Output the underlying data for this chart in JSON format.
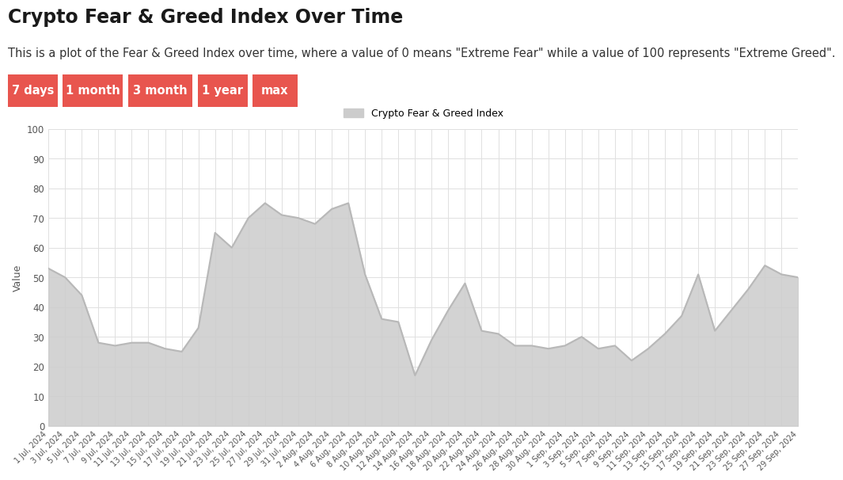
{
  "title": "Crypto Fear & Greed Index Over Time",
  "subtitle": "This is a plot of the Fear & Greed Index over time, where a value of 0 means \"Extreme Fear\" while a value of 100 represents \"Extreme Greed\".",
  "legend_label": "Crypto Fear & Greed Index",
  "ylabel": "Value",
  "button_labels": [
    "7 days",
    "1 month",
    "3 month",
    "1 year",
    "max"
  ],
  "button_color": "#e8554e",
  "line_color": "#b8b8b8",
  "line_fill_color": "#cccccc",
  "background_color": "#ffffff",
  "grid_color": "#e0e0e0",
  "ylim": [
    0,
    100
  ],
  "yticks": [
    0,
    10,
    20,
    30,
    40,
    50,
    60,
    70,
    80,
    90,
    100
  ],
  "dates": [
    "1 Jul, 2024",
    "3 Jul, 2024",
    "5 Jul, 2024",
    "7 Jul, 2024",
    "9 Jul, 2024",
    "11 Jul, 2024",
    "13 Jul, 2024",
    "15 Jul, 2024",
    "17 Jul, 2024",
    "19 Jul, 2024",
    "21 Jul, 2024",
    "23 Jul, 2024",
    "25 Jul, 2024",
    "27 Jul, 2024",
    "29 Jul, 2024",
    "31 Jul, 2024",
    "2 Aug, 2024",
    "4 Aug, 2024",
    "6 Aug, 2024",
    "8 Aug, 2024",
    "10 Aug, 2024",
    "12 Aug, 2024",
    "14 Aug, 2024",
    "16 Aug, 2024",
    "18 Aug, 2024",
    "20 Aug, 2024",
    "22 Aug, 2024",
    "24 Aug, 2024",
    "26 Aug, 2024",
    "28 Aug, 2024",
    "30 Aug, 2024",
    "1 Sep, 2024",
    "3 Sep, 2024",
    "5 Sep, 2024",
    "7 Sep, 2024",
    "9 Sep, 2024",
    "11 Sep, 2024",
    "13 Sep, 2024",
    "15 Sep, 2024",
    "17 Sep, 2024",
    "19 Sep, 2024",
    "21 Sep, 2024",
    "23 Sep, 2024",
    "25 Sep, 2024",
    "27 Sep, 2024",
    "29 Sep, 2024"
  ],
  "values": [
    53,
    50,
    44,
    28,
    27,
    28,
    28,
    26,
    25,
    33,
    65,
    60,
    70,
    75,
    71,
    70,
    68,
    73,
    75,
    51,
    36,
    35,
    17,
    29,
    39,
    48,
    32,
    31,
    27,
    27,
    26,
    27,
    30,
    26,
    27,
    22,
    26,
    31,
    37,
    51,
    32,
    39,
    46,
    54,
    51,
    50
  ],
  "title_fontsize": 17,
  "subtitle_fontsize": 10.5,
  "axis_fontsize": 9,
  "tick_fontsize": 8.5,
  "legend_fontsize": 9
}
